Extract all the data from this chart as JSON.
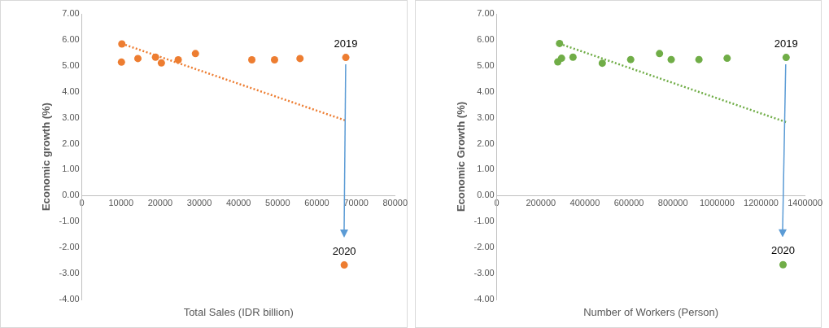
{
  "chart_data": [
    {
      "type": "scatter",
      "xlabel": "Total Sales (IDR billion)",
      "ylabel": "Economic growth (%)",
      "marker": "circle",
      "grid": false,
      "xlim": [
        0,
        80000
      ],
      "xticks": [
        0,
        10000,
        20000,
        30000,
        40000,
        50000,
        60000,
        70000,
        80000
      ],
      "ylim": [
        -4,
        7
      ],
      "yticks": [
        {
          "value": -4,
          "label": "-4.00"
        },
        {
          "value": -3,
          "label": "-3.00"
        },
        {
          "value": -2,
          "label": "-2.00"
        },
        {
          "value": -1,
          "label": "-1.00"
        },
        {
          "value": 0,
          "label": "0.00"
        },
        {
          "value": 1,
          "label": "1.00"
        },
        {
          "value": 2,
          "label": "2.00"
        },
        {
          "value": 3,
          "label": "3.00"
        },
        {
          "value": 4,
          "label": "4.00"
        },
        {
          "value": 5,
          "label": "5.00"
        },
        {
          "value": 6,
          "label": "6.00"
        },
        {
          "value": 7,
          "label": "7.00"
        }
      ],
      "series": [
        {
          "color": "#ed7d31",
          "x": [
            10200,
            10100,
            14300,
            18800,
            20300,
            24600,
            29000,
            43400,
            49200,
            55700,
            67400,
            67000
          ],
          "values": [
            5.84,
            5.14,
            5.28,
            5.33,
            5.11,
            5.23,
            5.47,
            5.23,
            5.23,
            5.28,
            5.32,
            -2.67
          ]
        },
        {
          "type": "line",
          "color": "#ed7d31",
          "line_style": "dotted",
          "marker": "none",
          "x": [
            10200,
            67400
          ],
          "values": [
            5.85,
            2.89
          ]
        }
      ],
      "annotations": [
        {
          "text": "2019",
          "x": 67400,
          "y": 5.32
        },
        {
          "text": "2020",
          "x": 67000,
          "y": -2.67
        }
      ]
    },
    {
      "type": "scatter",
      "xlabel": "Number of Workers (Person)",
      "ylabel": "Economic Growth (%)",
      "marker": "circle",
      "grid": false,
      "xlim": [
        0,
        1400000
      ],
      "xticks": [
        0,
        200000,
        400000,
        600000,
        800000,
        1000000,
        1200000,
        1400000
      ],
      "ylim": [
        -4,
        7
      ],
      "yticks": [
        {
          "value": -4,
          "label": "-4.00"
        },
        {
          "value": -3,
          "label": "-3.00"
        },
        {
          "value": -2,
          "label": "-2.00"
        },
        {
          "value": -1,
          "label": "-1.00"
        },
        {
          "value": 0,
          "label": "0.00"
        },
        {
          "value": 1,
          "label": "1.00"
        },
        {
          "value": 2,
          "label": "2.00"
        },
        {
          "value": 3,
          "label": "3.00"
        },
        {
          "value": 4,
          "label": "4.00"
        },
        {
          "value": 5,
          "label": "5.00"
        },
        {
          "value": 6,
          "label": "6.00"
        },
        {
          "value": 7,
          "label": "7.00"
        }
      ],
      "series": [
        {
          "color": "#70ad47",
          "x": [
            285000,
            277000,
            294000,
            346000,
            479000,
            608000,
            739000,
            792000,
            918000,
            1046000,
            1314000,
            1300000
          ],
          "values": [
            5.86,
            5.15,
            5.29,
            5.33,
            5.1,
            5.24,
            5.47,
            5.24,
            5.24,
            5.29,
            5.32,
            -2.66
          ]
        },
        {
          "type": "line",
          "color": "#70ad47",
          "line_style": "dotted",
          "marker": "none",
          "x": [
            285000,
            1314000
          ],
          "values": [
            5.85,
            2.83
          ]
        }
      ],
      "annotations": [
        {
          "text": "2019",
          "x": 1314000,
          "y": 5.32
        },
        {
          "text": "2020",
          "x": 1300000,
          "y": -2.66
        }
      ]
    }
  ]
}
